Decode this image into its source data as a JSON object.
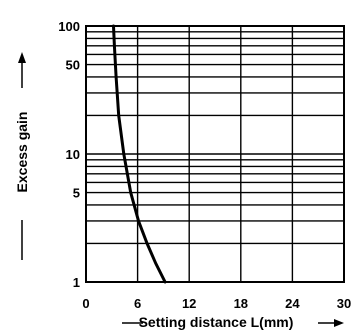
{
  "chart_data": {
    "type": "line",
    "title": "",
    "xlabel": "Setting distance L(mm)",
    "ylabel": "Excess gain",
    "xlim": [
      0,
      30
    ],
    "ylim": [
      1,
      100
    ],
    "y_scale": "log",
    "grid": true,
    "x_ticks": [
      "0",
      "6",
      "12",
      "18",
      "24",
      "30"
    ],
    "y_ticks": [
      "1",
      "5",
      "10",
      "50",
      "100"
    ],
    "series": [
      {
        "x": [
          3.2,
          3.3,
          3.5,
          3.8,
          4.4,
          5.2,
          6.1,
          7.1,
          8.1,
          9.2
        ],
        "y": [
          100,
          70,
          40,
          20,
          10,
          5,
          3,
          2,
          1.4,
          1
        ]
      }
    ]
  }
}
